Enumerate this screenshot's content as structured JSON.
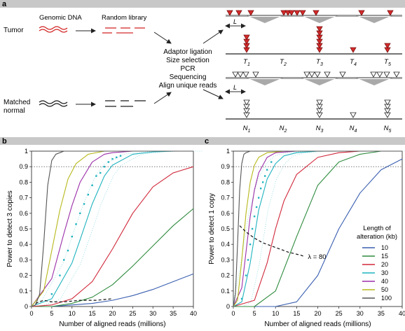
{
  "panel_a": {
    "label": "a",
    "tumor_label": "Tumor",
    "normal_label_1": "Matched",
    "normal_label_2": "normal",
    "genomic_dna": "Genomic DNA",
    "random_library": "Random library",
    "steps": [
      "Adaptor ligation",
      "Size selection",
      "PCR",
      "Sequencing",
      "Align unique reads"
    ],
    "length_symbol": "L",
    "tumor_regions": [
      {
        "name": "T",
        "sub": "1"
      },
      {
        "name": "T",
        "sub": "2"
      },
      {
        "name": "T",
        "sub": "3"
      },
      {
        "name": "T",
        "sub": "4"
      },
      {
        "name": "T",
        "sub": "5"
      }
    ],
    "normal_regions": [
      {
        "name": "N",
        "sub": "1"
      },
      {
        "name": "N",
        "sub": "2"
      },
      {
        "name": "N",
        "sub": "3"
      },
      {
        "name": "N",
        "sub": "4"
      },
      {
        "name": "N",
        "sub": "5"
      }
    ],
    "tumor_region_read_counts": [
      4,
      0,
      6,
      1,
      2
    ],
    "normal_region_read_counts": [
      4,
      0,
      4,
      1,
      4
    ],
    "colors": {
      "tumor": "#d42a2a",
      "normal": "#222222",
      "bar": "#aaaaaa"
    }
  },
  "legend": {
    "title_1": "Length of",
    "title_2": "alteration (kb)",
    "items": [
      {
        "label": "10",
        "color": "#3a5fb0"
      },
      {
        "label": "15",
        "color": "#2e8b3e"
      },
      {
        "label": "20",
        "color": "#d0283a"
      },
      {
        "label": "30",
        "color": "#1fb3bf"
      },
      {
        "label": "40",
        "color": "#9b2ea8"
      },
      {
        "label": "50",
        "color": "#b7b81c"
      },
      {
        "label": "100",
        "color": "#555555"
      }
    ]
  },
  "chart_data": [
    {
      "panel": "b",
      "type": "line",
      "xlabel": "Number of aligned reads (millions)",
      "ylabel": "Power to detect 3 copies",
      "xlim": [
        0,
        40
      ],
      "ylim": [
        0,
        1
      ],
      "xticks": [
        0,
        5,
        10,
        15,
        20,
        25,
        30,
        35,
        40
      ],
      "yticks": [
        0,
        0.1,
        0.2,
        0.3,
        0.4,
        0.5,
        0.6,
        0.7,
        0.8,
        0.9,
        1
      ],
      "threshold_line": 0.9,
      "series": [
        {
          "name": "10",
          "color": "#3a5fb0",
          "x": [
            0,
            5,
            10,
            15,
            20,
            25,
            30,
            35,
            40
          ],
          "y": [
            0,
            0.0,
            0.01,
            0.02,
            0.04,
            0.07,
            0.11,
            0.16,
            0.21
          ]
        },
        {
          "name": "15",
          "color": "#2e8b3e",
          "x": [
            0,
            5,
            10,
            15,
            20,
            25,
            30,
            35,
            40
          ],
          "y": [
            0,
            0.0,
            0.02,
            0.06,
            0.14,
            0.26,
            0.39,
            0.52,
            0.63
          ]
        },
        {
          "name": "20",
          "color": "#d0283a",
          "x": [
            0,
            5,
            10,
            15,
            20,
            25,
            30,
            35,
            40
          ],
          "y": [
            0,
            0.01,
            0.05,
            0.16,
            0.37,
            0.6,
            0.77,
            0.86,
            0.9
          ]
        },
        {
          "name": "30",
          "color": "#1fb3bf",
          "x": [
            0,
            5,
            10,
            12,
            15,
            18,
            20,
            25,
            30,
            35,
            40
          ],
          "y": [
            0,
            0.05,
            0.28,
            0.43,
            0.66,
            0.84,
            0.91,
            0.98,
            0.995,
            1,
            1
          ]
        },
        {
          "name": "40",
          "color": "#9b2ea8",
          "x": [
            0,
            5,
            8,
            10,
            12,
            15,
            18,
            20,
            25,
            30,
            40
          ],
          "y": [
            0,
            0.18,
            0.47,
            0.65,
            0.8,
            0.93,
            0.98,
            0.99,
            1,
            1,
            1
          ]
        },
        {
          "name": "50",
          "color": "#b7b81c",
          "x": [
            0,
            3,
            5,
            7,
            9,
            11,
            14,
            18,
            25,
            40
          ],
          "y": [
            0,
            0.1,
            0.36,
            0.62,
            0.82,
            0.92,
            0.98,
            1,
            1,
            1
          ]
        },
        {
          "name": "100",
          "color": "#555555",
          "x": [
            0,
            1,
            2,
            3,
            4,
            5,
            6,
            8,
            10,
            15,
            40
          ],
          "y": [
            0,
            0.01,
            0.08,
            0.4,
            0.78,
            0.94,
            0.98,
            1,
            1,
            1,
            1
          ]
        }
      ],
      "scatter": {
        "color": "#1fb3bf",
        "x": [
          5,
          7,
          8,
          9,
          10,
          11,
          12,
          13,
          14,
          15,
          16,
          17,
          18,
          19,
          20,
          21,
          22
        ],
        "y": [
          0.08,
          0.2,
          0.3,
          0.36,
          0.45,
          0.53,
          0.6,
          0.66,
          0.72,
          0.78,
          0.84,
          0.86,
          0.9,
          0.93,
          0.95,
          0.96,
          0.97
        ]
      },
      "dashed_curve": {
        "x": [
          1,
          3,
          5,
          8,
          12,
          16,
          20
        ],
        "y": [
          0.02,
          0.04,
          0.03,
          0.03,
          0.04,
          0.04,
          0.05
        ]
      }
    },
    {
      "panel": "c",
      "type": "line",
      "xlabel": "Number of aligned reads (millions)",
      "ylabel": "Power to detect 1 copy",
      "xlim": [
        0,
        40
      ],
      "ylim": [
        0,
        1
      ],
      "xticks": [
        0,
        5,
        10,
        15,
        20,
        25,
        30,
        35,
        40
      ],
      "yticks": [
        0,
        0.1,
        0.2,
        0.3,
        0.4,
        0.5,
        0.6,
        0.7,
        0.8,
        0.9,
        1
      ],
      "threshold_line": 0.9,
      "annotation": {
        "text": "λ = 80",
        "x": 17,
        "y": 0.32
      },
      "series": [
        {
          "name": "10",
          "color": "#3a5fb0",
          "x": [
            0,
            10,
            15,
            20,
            25,
            30,
            35,
            40
          ],
          "y": [
            0,
            0.0,
            0.03,
            0.2,
            0.5,
            0.73,
            0.88,
            0.95
          ]
        },
        {
          "name": "15",
          "color": "#2e8b3e",
          "x": [
            0,
            5,
            10,
            15,
            20,
            25,
            30,
            35,
            40
          ],
          "y": [
            0,
            0.0,
            0.1,
            0.45,
            0.78,
            0.93,
            0.98,
            1,
            1
          ]
        },
        {
          "name": "20",
          "color": "#d0283a",
          "x": [
            0,
            5,
            8,
            10,
            12,
            15,
            20,
            25,
            30,
            40
          ],
          "y": [
            0,
            0.04,
            0.28,
            0.5,
            0.68,
            0.85,
            0.96,
            0.99,
            1,
            1
          ]
        },
        {
          "name": "30",
          "color": "#1fb3bf",
          "x": [
            0,
            2,
            4,
            6,
            8,
            10,
            12,
            15,
            20,
            40
          ],
          "y": [
            0,
            0.03,
            0.28,
            0.62,
            0.82,
            0.92,
            0.97,
            0.99,
            1,
            1
          ]
        },
        {
          "name": "40",
          "color": "#9b2ea8",
          "x": [
            0,
            2,
            3,
            4,
            5,
            6,
            8,
            10,
            15,
            40
          ],
          "y": [
            0,
            0.12,
            0.35,
            0.58,
            0.75,
            0.86,
            0.96,
            0.99,
            1,
            1
          ]
        },
        {
          "name": "50",
          "color": "#b7b81c",
          "x": [
            0,
            1,
            2,
            3,
            4,
            5,
            6,
            8,
            12,
            40
          ],
          "y": [
            0,
            0.04,
            0.3,
            0.6,
            0.8,
            0.91,
            0.96,
            0.99,
            1,
            1
          ]
        },
        {
          "name": "100",
          "color": "#555555",
          "x": [
            0,
            0.5,
            1,
            1.5,
            2,
            2.5,
            3,
            4,
            6,
            40
          ],
          "y": [
            0,
            0.08,
            0.4,
            0.75,
            0.92,
            0.98,
            0.99,
            1,
            1,
            1
          ]
        }
      ],
      "scatter": {
        "color": "#1fb3bf",
        "x": [
          2,
          3,
          3.5,
          4,
          4.5,
          5,
          5.5,
          6,
          6.5,
          7,
          7.5,
          8,
          9
        ],
        "y": [
          0.05,
          0.2,
          0.3,
          0.4,
          0.5,
          0.58,
          0.64,
          0.7,
          0.76,
          0.8,
          0.84,
          0.88,
          0.93
        ]
      },
      "dashed_curve": {
        "x": [
          1.5,
          3,
          5,
          7,
          10,
          13,
          16,
          17
        ],
        "y": [
          0.52,
          0.48,
          0.44,
          0.41,
          0.38,
          0.35,
          0.33,
          0.32
        ]
      }
    }
  ]
}
